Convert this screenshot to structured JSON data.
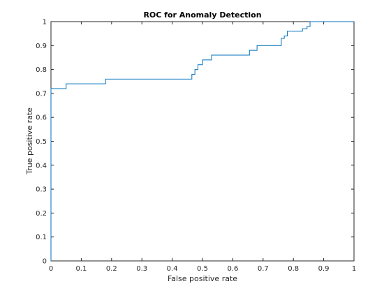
{
  "chart_data": {
    "type": "line",
    "title": "ROC for Anomaly Detection",
    "xlabel": "False positive rate",
    "ylabel": "True positive rate",
    "xlim": [
      0,
      1
    ],
    "ylim": [
      0,
      1
    ],
    "grid": false,
    "legend": "none",
    "line_color": "#0072BD",
    "xticks": [
      0,
      0.1,
      0.2,
      0.3,
      0.4,
      0.5,
      0.6,
      0.7,
      0.8,
      0.9,
      1
    ],
    "yticks": [
      0,
      0.1,
      0.2,
      0.3,
      0.4,
      0.5,
      0.6,
      0.7,
      0.8,
      0.9,
      1
    ],
    "xtick_labels": [
      "0",
      "0.1",
      "0.2",
      "0.3",
      "0.4",
      "0.5",
      "0.6",
      "0.7",
      "0.8",
      "0.9",
      "1"
    ],
    "ytick_labels": [
      "0",
      "0.1",
      "0.2",
      "0.3",
      "0.4",
      "0.5",
      "0.6",
      "0.7",
      "0.8",
      "0.9",
      "1"
    ],
    "series": [
      {
        "x": [
          0,
          0,
          0.05,
          0.05,
          0.18,
          0.18,
          0.465,
          0.465,
          0.475,
          0.475,
          0.485,
          0.485,
          0.5,
          0.5,
          0.53,
          0.53,
          0.54,
          0.54,
          0.655,
          0.655,
          0.68,
          0.68,
          0.76,
          0.76,
          0.77,
          0.77,
          0.78,
          0.78,
          0.83,
          0.83,
          0.845,
          0.845,
          0.855,
          0.855,
          0.87,
          0.87,
          1.0
        ],
        "y": [
          0,
          0.72,
          0.72,
          0.74,
          0.74,
          0.76,
          0.76,
          0.78,
          0.78,
          0.8,
          0.8,
          0.82,
          0.82,
          0.84,
          0.84,
          0.86,
          0.86,
          0.86,
          0.86,
          0.88,
          0.88,
          0.9,
          0.9,
          0.93,
          0.93,
          0.94,
          0.94,
          0.96,
          0.96,
          0.97,
          0.97,
          0.98,
          0.98,
          1.0,
          1.0,
          1.0,
          1.0
        ]
      }
    ]
  }
}
